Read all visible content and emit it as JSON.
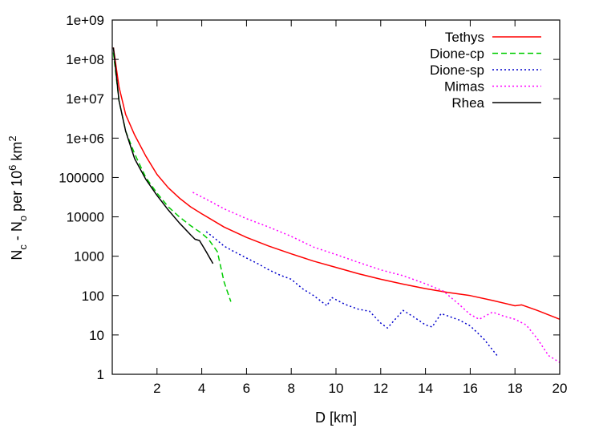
{
  "chart_data": {
    "type": "line",
    "xlabel": "D [km]",
    "ylabel": {
      "n": "N",
      "sub_c": "c",
      "minus": " - N",
      "sub_o": "o",
      "per": " per 10",
      "sup6": "6",
      "km": " km",
      "sup2": "2"
    },
    "xlim": [
      0,
      20
    ],
    "ylim": [
      1,
      1000000000
    ],
    "yscale": "log",
    "grid": false,
    "legend_position": "top-right",
    "x_ticks": [
      2,
      4,
      6,
      8,
      10,
      12,
      14,
      16,
      18,
      20
    ],
    "x_tick_labels": [
      "2",
      "4",
      "6",
      "8",
      "10",
      "12",
      "14",
      "16",
      "18",
      "20"
    ],
    "y_ticks": [
      1,
      10,
      100,
      1000,
      10000,
      100000,
      1000000,
      10000000,
      100000000,
      1000000000
    ],
    "y_tick_labels": [
      "1",
      "10",
      "100",
      "1000",
      "10000",
      "100000",
      "1e+06",
      "1e+07",
      "1e+08",
      "1e+09"
    ],
    "series": [
      {
        "name": "Tethys",
        "color": "#ff0000",
        "dash": "solid",
        "x": [
          0.05,
          0.3,
          0.6,
          1.0,
          1.5,
          2.0,
          2.5,
          3.0,
          3.5,
          4.0,
          5.0,
          6.0,
          7.0,
          8.0,
          9.0,
          10.0,
          11.0,
          12.0,
          13.0,
          14.0,
          15.0,
          16.0,
          17.0,
          18.0,
          18.3,
          19.0,
          20.0
        ],
        "y": [
          200000000,
          20000000,
          4000000,
          1200000,
          350000,
          120000,
          55000,
          30000,
          18000,
          12000,
          5500,
          3000,
          1800,
          1150,
          750,
          520,
          360,
          260,
          195,
          150,
          120,
          100,
          75,
          55,
          58,
          42,
          25
        ]
      },
      {
        "name": "Dione-cp",
        "color": "#00cc00",
        "dash": "dashed",
        "x": [
          0.05,
          0.3,
          0.6,
          1.0,
          1.5,
          2.0,
          2.5,
          3.0,
          3.5,
          4.0,
          4.3,
          4.7,
          5.0,
          5.3
        ],
        "y": [
          150000000,
          9000000,
          1500000,
          400000,
          100000,
          40000,
          18000,
          10000,
          6000,
          3800,
          2700,
          1300,
          220,
          70
        ]
      },
      {
        "name": "Dione-sp",
        "color": "#0000cc",
        "dash": "dotted",
        "x": [
          4.2,
          4.6,
          5.0,
          5.4,
          6.0,
          6.5,
          7.0,
          7.5,
          8.0,
          8.5,
          9.0,
          9.6,
          9.8,
          10.4,
          11.0,
          11.5,
          12.0,
          12.3,
          13.0,
          13.5,
          14.0,
          14.3,
          14.7,
          15.5,
          16.0,
          16.6,
          17.2
        ],
        "y": [
          4200,
          2800,
          1800,
          1350,
          900,
          650,
          450,
          330,
          260,
          150,
          100,
          55,
          90,
          60,
          45,
          40,
          20,
          15,
          42,
          28,
          18,
          16,
          35,
          24,
          17,
          8,
          3
        ]
      },
      {
        "name": "Mimas",
        "color": "#ff00ff",
        "dash": "dotted",
        "x": [
          3.6,
          4.2,
          5.0,
          6.0,
          7.0,
          8.0,
          9.0,
          10.0,
          11.0,
          12.0,
          13.0,
          14.0,
          14.8,
          15.5,
          16.0,
          16.4,
          17.0,
          17.5,
          18.0,
          18.5,
          19.0,
          19.5,
          20.0
        ],
        "y": [
          42000,
          28000,
          16000,
          9000,
          5500,
          3200,
          1700,
          1100,
          700,
          450,
          320,
          200,
          130,
          60,
          33,
          25,
          38,
          30,
          25,
          18,
          8,
          3,
          2
        ]
      },
      {
        "name": "Rhea",
        "color": "#000000",
        "dash": "solid",
        "x": [
          0.05,
          0.3,
          0.6,
          1.0,
          1.5,
          2.0,
          2.5,
          3.0,
          3.5,
          3.7,
          3.9,
          4.2,
          4.5
        ],
        "y": [
          200000000,
          9000000,
          1500000,
          300000,
          90000,
          35000,
          15000,
          7000,
          3500,
          2700,
          2500,
          1300,
          650
        ]
      }
    ]
  }
}
